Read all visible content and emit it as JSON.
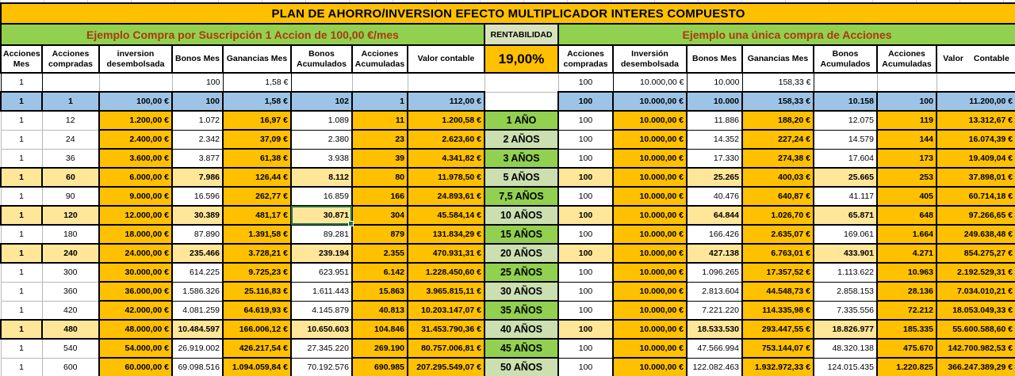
{
  "title": "PLAN DE AHORRO/INVERSION EFECTO MULTIPLICADOR INTERES COMPUESTO",
  "colors": {
    "orange": "#FFC000",
    "cream": "#FFE699",
    "blue_row": "#9DC3E6",
    "green_bright": "#92D050",
    "green_light": "#CBDFB1",
    "rentabilidad_bg": "#D7E3BD",
    "section_header_text": "#A63B0F",
    "selection_border": "#217346"
  },
  "left_section": {
    "header": "Ejemplo Compra por Suscripción 1 Accion de 100,00 €/mes",
    "columns": [
      "Acciones Mes",
      "Acciones compradas",
      "inversion desembolsada",
      "Bonos Mes",
      "Ganancias Mes",
      "Bonos Acumulados",
      "Acciones Acumuladas",
      "Valor contable"
    ]
  },
  "middle": {
    "header": "RENTABILIDAD",
    "rate": "19,00%"
  },
  "right_section": {
    "header": "Ejemplo una única compra de Acciones",
    "columns": [
      "Acciones compradas",
      "Inversión desembolsada",
      "Bonos Mes",
      "Ganancias Mes",
      "Bonos Acumulados",
      "Acciones Acumuladas",
      "Valor Contable"
    ]
  },
  "selected_cell": {
    "row_index": 7,
    "side": "left",
    "col_index": 5,
    "value": "30.871"
  },
  "rows": [
    {
      "highlight": "unfilled",
      "period": "",
      "period_tone": "",
      "left": [
        "1",
        "",
        "",
        "100",
        "1,58 €",
        "",
        "",
        ""
      ],
      "right": [
        "100",
        "10.000,00 €",
        "10.000",
        "158,33 €",
        "",
        "",
        ""
      ]
    },
    {
      "highlight": "blue",
      "period": "",
      "period_tone": "",
      "left": [
        "1",
        "1",
        "100,00 €",
        "100",
        "1,58 €",
        "102",
        "1",
        "112,00 €"
      ],
      "right": [
        "100",
        "10.000,00 €",
        "10.000",
        "158,33 €",
        "10.158",
        "100",
        "11.200,00 €"
      ]
    },
    {
      "highlight": "plain",
      "period": "1 AÑO",
      "period_tone": "bright",
      "left": [
        "1",
        "12",
        "1.200,00 €",
        "1.072",
        "16,97 €",
        "1.089",
        "11",
        "1.200,58 €"
      ],
      "right": [
        "100",
        "10.000,00 €",
        "11.886",
        "188,20 €",
        "12.075",
        "119",
        "13.312,67 €"
      ]
    },
    {
      "highlight": "plain",
      "period": "2 AÑOS",
      "period_tone": "light",
      "left": [
        "1",
        "24",
        "2.400,00 €",
        "2.342",
        "37,09 €",
        "2.380",
        "23",
        "2.623,60 €"
      ],
      "right": [
        "100",
        "10.000,00 €",
        "14.352",
        "227,24 €",
        "14.579",
        "144",
        "16.074,39 €"
      ]
    },
    {
      "highlight": "plain",
      "period": "3 AÑOS",
      "period_tone": "bright",
      "left": [
        "1",
        "36",
        "3.600,00 €",
        "3.877",
        "61,38 €",
        "3.938",
        "39",
        "4.341,82 €"
      ],
      "right": [
        "100",
        "10.000,00 €",
        "17.330",
        "274,38 €",
        "17.604",
        "173",
        "19.409,04 €"
      ]
    },
    {
      "highlight": "cream",
      "period": "5 AÑOS",
      "period_tone": "light",
      "left": [
        "1",
        "60",
        "6.000,00 €",
        "7.986",
        "126,44 €",
        "8.112",
        "80",
        "11.978,50 €"
      ],
      "right": [
        "100",
        "10.000,00 €",
        "25.265",
        "400,03 €",
        "25.665",
        "253",
        "37.898,01 €"
      ]
    },
    {
      "highlight": "plain",
      "period": "7,5 AÑOS",
      "period_tone": "bright",
      "left": [
        "1",
        "90",
        "9.000,00 €",
        "16.596",
        "262,77 €",
        "16.859",
        "166",
        "24.893,61 €"
      ],
      "right": [
        "100",
        "10.000,00 €",
        "40.476",
        "640,87 €",
        "41.117",
        "405",
        "60.714,18 €"
      ]
    },
    {
      "highlight": "cream",
      "period": "10 AÑOS",
      "period_tone": "light",
      "left": [
        "1",
        "120",
        "12.000,00 €",
        "30.389",
        "481,17 €",
        "30.871",
        "304",
        "45.584,14 €"
      ],
      "right": [
        "100",
        "10.000,00 €",
        "64.844",
        "1.026,70 €",
        "65.871",
        "648",
        "97.266,65 €"
      ]
    },
    {
      "highlight": "plain",
      "period": "15 AÑOS",
      "period_tone": "bright",
      "left": [
        "1",
        "180",
        "18.000,00 €",
        "87.890",
        "1.391,58 €",
        "89.281",
        "879",
        "131.834,29 €"
      ],
      "right": [
        "100",
        "10.000,00 €",
        "166.426",
        "2.635,07 €",
        "169.061",
        "1.664",
        "249.638,48 €"
      ]
    },
    {
      "highlight": "cream",
      "period": "20 AÑOS",
      "period_tone": "light",
      "left": [
        "1",
        "240",
        "24.000,00 €",
        "235.466",
        "3.728,21 €",
        "239.194",
        "2.355",
        "470.931,31 €"
      ],
      "right": [
        "100",
        "10.000,00 €",
        "427.138",
        "6.763,01 €",
        "433.901",
        "4.271",
        "854.275,27 €"
      ]
    },
    {
      "highlight": "plain",
      "period": "25 AÑOS",
      "period_tone": "bright",
      "left": [
        "1",
        "300",
        "30.000,00 €",
        "614.225",
        "9.725,23 €",
        "623.951",
        "6.142",
        "1.228.450,60 €"
      ],
      "right": [
        "100",
        "10.000,00 €",
        "1.096.265",
        "17.357,52 €",
        "1.113.622",
        "10.963",
        "2.192.529,31 €"
      ]
    },
    {
      "highlight": "plain",
      "period": "30 AÑOS",
      "period_tone": "light",
      "left": [
        "1",
        "360",
        "36.000,00 €",
        "1.586.326",
        "25.116,83 €",
        "1.611.443",
        "15.863",
        "3.965.815,11 €"
      ],
      "right": [
        "100",
        "10.000,00 €",
        "2.813.604",
        "44.548,73 €",
        "2.858.153",
        "28.136",
        "7.034.010,21 €"
      ]
    },
    {
      "highlight": "plain",
      "period": "35 AÑOS",
      "period_tone": "bright",
      "left": [
        "1",
        "420",
        "42.000,00 €",
        "4.081.259",
        "64.619,93 €",
        "4.145.879",
        "40.813",
        "10.203.147,07 €"
      ],
      "right": [
        "100",
        "10.000,00 €",
        "7.221.220",
        "114.335,98 €",
        "7.335.556",
        "72.212",
        "18.053.049,33 €"
      ]
    },
    {
      "highlight": "cream",
      "period": "40 AÑOS",
      "period_tone": "light",
      "left": [
        "1",
        "480",
        "48.000,00 €",
        "10.484.597",
        "166.006,12 €",
        "10.650.603",
        "104.846",
        "31.453.790,36 €"
      ],
      "right": [
        "100",
        "10.000,00 €",
        "18.533.530",
        "293.447,55 €",
        "18.826.977",
        "185.335",
        "55.600.588,60 €"
      ]
    },
    {
      "highlight": "plain",
      "period": "45 AÑOS",
      "period_tone": "bright",
      "left": [
        "1",
        "540",
        "54.000,00 €",
        "26.919.002",
        "426.217,54 €",
        "27.345.220",
        "269.190",
        "80.757.006,81 €"
      ],
      "right": [
        "100",
        "10.000,00 €",
        "47.566.994",
        "753.144,07 €",
        "48.320.138",
        "475.670",
        "142.700.982,53 €"
      ]
    },
    {
      "highlight": "plain",
      "period": "50 AÑOS",
      "period_tone": "light",
      "left": [
        "1",
        "600",
        "60.000,00 €",
        "69.098.516",
        "1.094.059,84 €",
        "70.192.576",
        "690.985",
        "207.295.549,07 €"
      ],
      "right": [
        "100",
        "10.000,00 €",
        "122.082.463",
        "1.932.972,33 €",
        "124.015.435",
        "1.220.825",
        "366.247.389,29 €"
      ]
    }
  ]
}
